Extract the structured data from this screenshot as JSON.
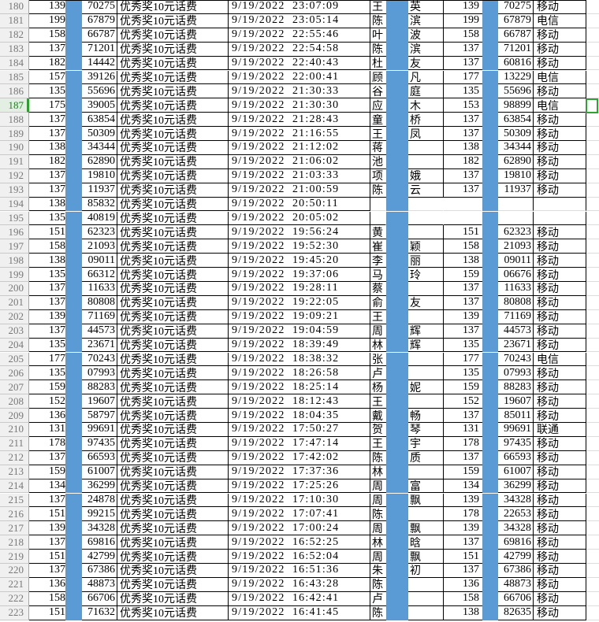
{
  "app": {
    "kind": "spreadsheet-grid-excerpt"
  },
  "colors": {
    "masked_column_fill": "#5b9bd5",
    "grid_border": "#000000",
    "light_gridline": "#dcdcdc",
    "row_header_bg": "#f0f0f0",
    "row_header_text": "#787878",
    "selected_header_bg": "#e4efe4",
    "selected_header_text": "#1e7e1e",
    "selection_green": "#2fa331"
  },
  "selection": {
    "row": "187"
  },
  "rows": [
    {
      "n": "180",
      "b": "139",
      "d": "70275",
      "prize": "优秀奖10元话费",
      "dt": "9/19/2022  23:07:09",
      "g": "王",
      "h": "英",
      "i": "139",
      "j": "70275",
      "k": "移动"
    },
    {
      "n": "181",
      "b": "199",
      "d": "67879",
      "prize": "优秀奖10元话费",
      "dt": "9/19/2022  23:05:14",
      "g": "陈",
      "h": "滨",
      "i": "199",
      "j": "67879",
      "k": "电信"
    },
    {
      "n": "182",
      "b": "158",
      "d": "66787",
      "prize": "优秀奖10元话费",
      "dt": "9/19/2022  22:55:46",
      "g": "叶",
      "h": "波",
      "i": "158",
      "j": "66787",
      "k": "移动"
    },
    {
      "n": "183",
      "b": "137",
      "d": "71201",
      "prize": "优秀奖10元话费",
      "dt": "9/19/2022  22:54:58",
      "g": "陈",
      "h": "滨",
      "i": "137",
      "j": "71201",
      "k": "移动"
    },
    {
      "n": "184",
      "b": "182",
      "d": "14442",
      "prize": "优秀奖10元话费",
      "dt": "9/19/2022  22:40:43",
      "g": "杜",
      "h": "友",
      "i": "137",
      "j": "60816",
      "k": "移动"
    },
    {
      "n": "185",
      "b": "157",
      "d": "39126",
      "prize": "优秀奖10元话费",
      "dt": "9/19/2022  22:00:41",
      "g": "顾",
      "h": "凡",
      "i": "177",
      "j": "13229",
      "k": "电信"
    },
    {
      "n": "186",
      "b": "135",
      "d": "55696",
      "prize": "优秀奖10元话费",
      "dt": "9/19/2022  21:30:33",
      "g": "谷",
      "h": "庭",
      "i": "135",
      "j": "55696",
      "k": "移动"
    },
    {
      "n": "187",
      "b": "175",
      "d": "39005",
      "prize": "优秀奖10元话费",
      "dt": "9/19/2022  21:30:30",
      "g": "应",
      "h": "木",
      "i": "153",
      "j": "98899",
      "k": "电信"
    },
    {
      "n": "188",
      "b": "137",
      "d": "63854",
      "prize": "优秀奖10元话费",
      "dt": "9/19/2022  21:28:43",
      "g": "童",
      "h": "桥",
      "i": "137",
      "j": "63854",
      "k": "移动"
    },
    {
      "n": "189",
      "b": "137",
      "d": "50309",
      "prize": "优秀奖10元话费",
      "dt": "9/19/2022  21:16:55",
      "g": "王",
      "h": "凤",
      "i": "137",
      "j": "50309",
      "k": "移动"
    },
    {
      "n": "190",
      "b": "138",
      "d": "34344",
      "prize": "优秀奖10元话费",
      "dt": "9/19/2022  21:12:02",
      "g": "蒋",
      "h": "",
      "i": "138",
      "j": "34344",
      "k": "移动"
    },
    {
      "n": "191",
      "b": "182",
      "d": "62890",
      "prize": "优秀奖10元话费",
      "dt": "9/19/2022  21:06:02",
      "g": "池",
      "h": "",
      "i": "182",
      "j": "62890",
      "k": "移动"
    },
    {
      "n": "192",
      "b": "137",
      "d": "19810",
      "prize": "优秀奖10元话费",
      "dt": "9/19/2022  21:03:33",
      "g": "项",
      "h": "娥",
      "i": "137",
      "j": "19810",
      "k": "移动"
    },
    {
      "n": "193",
      "b": "137",
      "d": "11937",
      "prize": "优秀奖10元话费",
      "dt": "9/19/2022  21:00:59",
      "g": "陈",
      "h": "云",
      "i": "137",
      "j": "11937",
      "k": "移动"
    },
    {
      "n": "194",
      "b": "138",
      "d": "85832",
      "prize": "优秀奖10元话费",
      "dt": "9/19/2022  20:50:11",
      "g": "",
      "h": "",
      "i": "",
      "j": "",
      "k": ""
    },
    {
      "n": "195",
      "b": "135",
      "d": "40819",
      "prize": "优秀奖10元话费",
      "dt": "9/19/2022  20:05:02",
      "g": "",
      "h": "",
      "i": "",
      "j": "",
      "k": ""
    },
    {
      "n": "196",
      "b": "151",
      "d": "62323",
      "prize": "优秀奖10元话费",
      "dt": "9/19/2022  19:56:24",
      "g": "黄",
      "h": "",
      "i": "151",
      "j": "62323",
      "k": "移动"
    },
    {
      "n": "197",
      "b": "158",
      "d": "21093",
      "prize": "优秀奖10元话费",
      "dt": "9/19/2022  19:52:30",
      "g": "崔",
      "h": "颖",
      "i": "158",
      "j": "21093",
      "k": "移动"
    },
    {
      "n": "198",
      "b": "138",
      "d": "09011",
      "prize": "优秀奖10元话费",
      "dt": "9/19/2022  19:45:20",
      "g": "李",
      "h": "丽",
      "i": "138",
      "j": "09011",
      "k": "移动"
    },
    {
      "n": "199",
      "b": "135",
      "d": "66312",
      "prize": "优秀奖10元话费",
      "dt": "9/19/2022  19:37:06",
      "g": "马",
      "h": "玲",
      "i": "159",
      "j": "06676",
      "k": "移动"
    },
    {
      "n": "200",
      "b": "137",
      "d": "11633",
      "prize": "优秀奖10元话费",
      "dt": "9/19/2022  19:28:11",
      "g": "蔡",
      "h": "",
      "i": "137",
      "j": "11633",
      "k": "移动"
    },
    {
      "n": "201",
      "b": "137",
      "d": "80808",
      "prize": "优秀奖10元话费",
      "dt": "9/19/2022  19:22:05",
      "g": "俞",
      "h": "友",
      "i": "137",
      "j": "80808",
      "k": "移动"
    },
    {
      "n": "202",
      "b": "139",
      "d": "71169",
      "prize": "优秀奖10元话费",
      "dt": "9/19/2022  19:09:21",
      "g": "王",
      "h": "",
      "i": "139",
      "j": "71169",
      "k": "移动"
    },
    {
      "n": "203",
      "b": "137",
      "d": "44573",
      "prize": "优秀奖10元话费",
      "dt": "9/19/2022  19:04:59",
      "g": "周",
      "h": "辉",
      "i": "137",
      "j": "44573",
      "k": "移动"
    },
    {
      "n": "204",
      "b": "135",
      "d": "23671",
      "prize": "优秀奖10元话费",
      "dt": "9/19/2022  18:39:49",
      "g": "林",
      "h": "辉",
      "i": "135",
      "j": "23671",
      "k": "移动"
    },
    {
      "n": "205",
      "b": "177",
      "d": "70243",
      "prize": "优秀奖10元话费",
      "dt": "9/19/2022  18:38:32",
      "g": "张",
      "h": "",
      "i": "177",
      "j": "70243",
      "k": "电信"
    },
    {
      "n": "206",
      "b": "135",
      "d": "07993",
      "prize": "优秀奖10元话费",
      "dt": "9/19/2022  18:26:58",
      "g": "卢",
      "h": "",
      "i": "135",
      "j": "07993",
      "k": "移动"
    },
    {
      "n": "207",
      "b": "159",
      "d": "88283",
      "prize": "优秀奖10元话费",
      "dt": "9/19/2022  18:25:14",
      "g": "杨",
      "h": "妮",
      "i": "159",
      "j": "88283",
      "k": "移动"
    },
    {
      "n": "208",
      "b": "152",
      "d": "19607",
      "prize": "优秀奖10元话费",
      "dt": "9/19/2022  18:12:43",
      "g": "王",
      "h": "",
      "i": "152",
      "j": "19607",
      "k": "移动"
    },
    {
      "n": "209",
      "b": "136",
      "d": "58797",
      "prize": "优秀奖10元话费",
      "dt": "9/19/2022  18:04:35",
      "g": "戴",
      "h": "畅",
      "i": "137",
      "j": "85011",
      "k": "移动"
    },
    {
      "n": "210",
      "b": "131",
      "d": "99691",
      "prize": "优秀奖10元话费",
      "dt": "9/19/2022  17:50:27",
      "g": "贺",
      "h": "琴",
      "i": "131",
      "j": "99691",
      "k": "联通"
    },
    {
      "n": "211",
      "b": "178",
      "d": "97435",
      "prize": "优秀奖10元话费",
      "dt": "9/19/2022  17:47:14",
      "g": "王",
      "h": "宇",
      "i": "178",
      "j": "97435",
      "k": "移动"
    },
    {
      "n": "212",
      "b": "137",
      "d": "66593",
      "prize": "优秀奖10元话费",
      "dt": "9/19/2022  17:42:02",
      "g": "陈",
      "h": "质",
      "i": "137",
      "j": "66593",
      "k": "移动"
    },
    {
      "n": "213",
      "b": "159",
      "d": "61007",
      "prize": "优秀奖10元话费",
      "dt": "9/19/2022  17:37:36",
      "g": "林",
      "h": "",
      "i": "159",
      "j": "61007",
      "k": "移动"
    },
    {
      "n": "214",
      "b": "134",
      "d": "36299",
      "prize": "优秀奖10元话费",
      "dt": "9/19/2022  17:25:26",
      "g": "周",
      "h": "富",
      "i": "134",
      "j": "36299",
      "k": "移动"
    },
    {
      "n": "215",
      "b": "137",
      "d": "24878",
      "prize": "优秀奖10元话费",
      "dt": "9/19/2022  17:10:30",
      "g": "周",
      "h": "飘",
      "i": "139",
      "j": "34328",
      "k": "移动"
    },
    {
      "n": "216",
      "b": "151",
      "d": "99215",
      "prize": "优秀奖10元话费",
      "dt": "9/19/2022  17:07:41",
      "g": "陈",
      "h": "",
      "i": "178",
      "j": "22653",
      "k": "移动"
    },
    {
      "n": "217",
      "b": "139",
      "d": "34328",
      "prize": "优秀奖10元话费",
      "dt": "9/19/2022  17:00:24",
      "g": "周",
      "h": "飘",
      "i": "139",
      "j": "34328",
      "k": "移动"
    },
    {
      "n": "218",
      "b": "137",
      "d": "69816",
      "prize": "优秀奖10元话费",
      "dt": "9/19/2022  16:52:25",
      "g": "林",
      "h": "晗",
      "i": "137",
      "j": "69816",
      "k": "移动"
    },
    {
      "n": "219",
      "b": "151",
      "d": "42799",
      "prize": "优秀奖10元话费",
      "dt": "9/19/2022  16:52:04",
      "g": "周",
      "h": "飘",
      "i": "151",
      "j": "42799",
      "k": "移动"
    },
    {
      "n": "220",
      "b": "137",
      "d": "67386",
      "prize": "优秀奖10元话费",
      "dt": "9/19/2022  16:51:36",
      "g": "朱",
      "h": "初",
      "i": "137",
      "j": "67386",
      "k": "移动"
    },
    {
      "n": "221",
      "b": "136",
      "d": "48873",
      "prize": "优秀奖10元话费",
      "dt": "9/19/2022  16:43:28",
      "g": "陈",
      "h": "",
      "i": "136",
      "j": "48873",
      "k": "移动"
    },
    {
      "n": "222",
      "b": "158",
      "d": "66706",
      "prize": "优秀奖10元话费",
      "dt": "9/19/2022  16:42:41",
      "g": "卢",
      "h": "",
      "i": "158",
      "j": "66706",
      "k": "移动"
    },
    {
      "n": "223",
      "b": "151",
      "d": "71632",
      "prize": "优秀奖10元话费",
      "dt": "9/19/2022  16:41:45",
      "g": "陈",
      "h": "",
      "i": "138",
      "j": "82635",
      "k": "移动"
    }
  ]
}
